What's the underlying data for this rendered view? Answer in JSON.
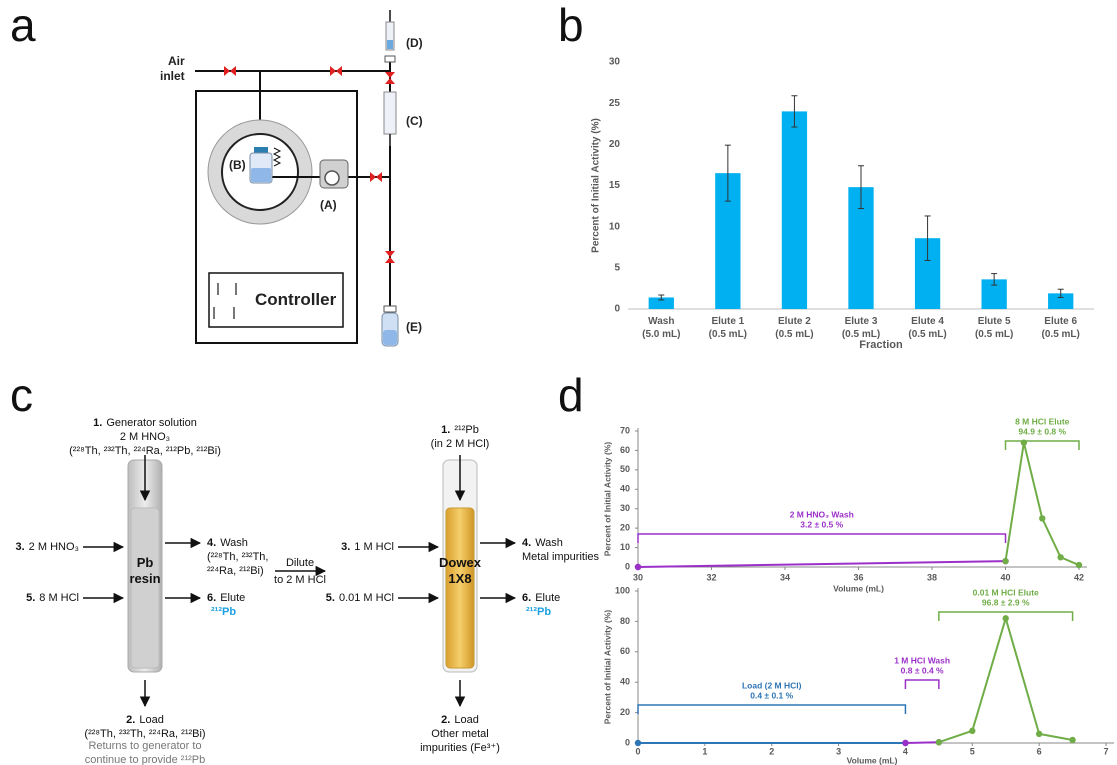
{
  "panel_labels": [
    "a",
    "b",
    "c",
    "d"
  ],
  "diagram_a": {
    "air_inlet": [
      "Air",
      "inlet"
    ],
    "parts": [
      "(A)",
      "(B)",
      "(C)",
      "(D)",
      "(E)"
    ],
    "controller": "Controller"
  },
  "diagram_c": {
    "pb_column": {
      "name": [
        "Pb",
        "resin"
      ],
      "steps": [
        {
          "number": "1.",
          "lines": [
            "Generator solution",
            "2 M HNO₃",
            "(²²⁸Th, ²³²Th, ²²⁴Ra, ²¹²Pb, ²¹²Bi)"
          ]
        },
        {
          "number": "2.",
          "lines": [
            "Load",
            "(²²⁸Th, ²³²Th, ²²⁴Ra, ²¹²Bi)"
          ],
          "note": [
            "Returns to generator to",
            "continue to provide ²¹²Pb"
          ]
        },
        {
          "number": "3.",
          "lines": [
            "2 M HNO₃"
          ]
        },
        {
          "number": "4.",
          "lines": [
            "Wash",
            "(²²⁸Th, ²³²Th,",
            "²²⁴Ra, ²¹²Bi)"
          ]
        },
        {
          "number": "5.",
          "lines": [
            "8 M HCl"
          ]
        },
        {
          "number": "6.",
          "lines": [
            "Elute",
            "²¹²Pb"
          ]
        }
      ]
    },
    "dilute": [
      "Dilute",
      "to 2 M HCl"
    ],
    "dowex_column": {
      "name": [
        "Dowex",
        "1X8"
      ],
      "steps": [
        {
          "number": "1.",
          "lines": [
            "²¹²Pb",
            "(in 2 M HCl)"
          ]
        },
        {
          "number": "2.",
          "lines": [
            "Load",
            "Other metal",
            "impurities (Fe³⁺)"
          ]
        },
        {
          "number": "3.",
          "lines": [
            "1 M HCl"
          ]
        },
        {
          "number": "4.",
          "lines": [
            "Wash",
            "Metal impurities"
          ]
        },
        {
          "number": "5.",
          "lines": [
            "0.01 M HCl"
          ]
        },
        {
          "number": "6.",
          "lines": [
            "Elute",
            "²¹²Pb"
          ]
        }
      ]
    }
  },
  "chart_data": [
    {
      "type": "bar",
      "x_label": "Fraction",
      "y_label": "Percent of Initial Activity (%)",
      "categories": [
        "Wash\n(5.0 mL)",
        "Elute 1\n(0.5 mL)",
        "Elute 2\n(0.5 mL)",
        "Elute 3\n(0.5 mL)",
        "Elute 4\n(0.5 mL)",
        "Elute 5\n(0.5 mL)",
        "Elute 6\n(0.5 mL)"
      ],
      "values": [
        1.4,
        16.5,
        24.0,
        14.8,
        8.6,
        3.6,
        1.9
      ],
      "errors": [
        0.3,
        3.4,
        1.9,
        2.6,
        2.7,
        0.7,
        0.5
      ],
      "color": "#00b0f0",
      "ylim": [
        0,
        30
      ],
      "yticks": [
        0,
        5,
        10,
        15,
        20,
        25,
        30
      ]
    },
    {
      "type": "line",
      "x_label": "Volume (mL)",
      "y_label": "Percent of Initial Activity (%)",
      "xlim": [
        30,
        42
      ],
      "xticks": [
        30,
        32,
        34,
        36,
        38,
        40,
        42
      ],
      "ylim": [
        0,
        70
      ],
      "yticks": [
        0,
        10,
        20,
        30,
        40,
        50,
        60,
        70
      ],
      "series": [
        {
          "color": "#4472c4",
          "x": [
            30
          ],
          "values": [
            0
          ]
        },
        {
          "color": "#9b30c8",
          "x": [
            30,
            40
          ],
          "values": [
            0,
            3
          ],
          "annotation": [
            "2 M HNO₃ Wash",
            "3.2 ± 0.5 %"
          ]
        },
        {
          "color": "#70ad47",
          "x": [
            40,
            40.5,
            41,
            41.5,
            42
          ],
          "values": [
            3,
            64,
            25,
            5,
            1
          ],
          "annotation": [
            "8 M HCl Elute",
            "94.9 ± 0.8 %"
          ]
        }
      ]
    },
    {
      "type": "line",
      "x_label": "Volume (mL)",
      "y_label": "Percent of Initial Activity (%)",
      "xlim": [
        0,
        7
      ],
      "xticks": [
        0,
        1,
        2,
        3,
        4,
        5,
        6,
        7
      ],
      "ylim": [
        0,
        100
      ],
      "yticks": [
        0,
        20,
        40,
        60,
        80,
        100
      ],
      "series": [
        {
          "color": "#2e75b6",
          "x": [
            0,
            4
          ],
          "values": [
            0,
            0
          ],
          "annotation": [
            "Load (2 M HCl)",
            "0.4 ± 0.1 %"
          ]
        },
        {
          "color": "#9b30c8",
          "x": [
            4,
            4.5
          ],
          "values": [
            0,
            0.5
          ],
          "annotation": [
            "1 M HCl Wash",
            "0.8 ± 0.4 %"
          ]
        },
        {
          "color": "#70ad47",
          "x": [
            4.5,
            5,
            5.5,
            6,
            6.5
          ],
          "values": [
            0.5,
            8,
            82,
            6,
            2
          ],
          "annotation": [
            "0.01 M HCl Elute",
            "96.8 ± 2.9 %"
          ]
        }
      ]
    }
  ]
}
